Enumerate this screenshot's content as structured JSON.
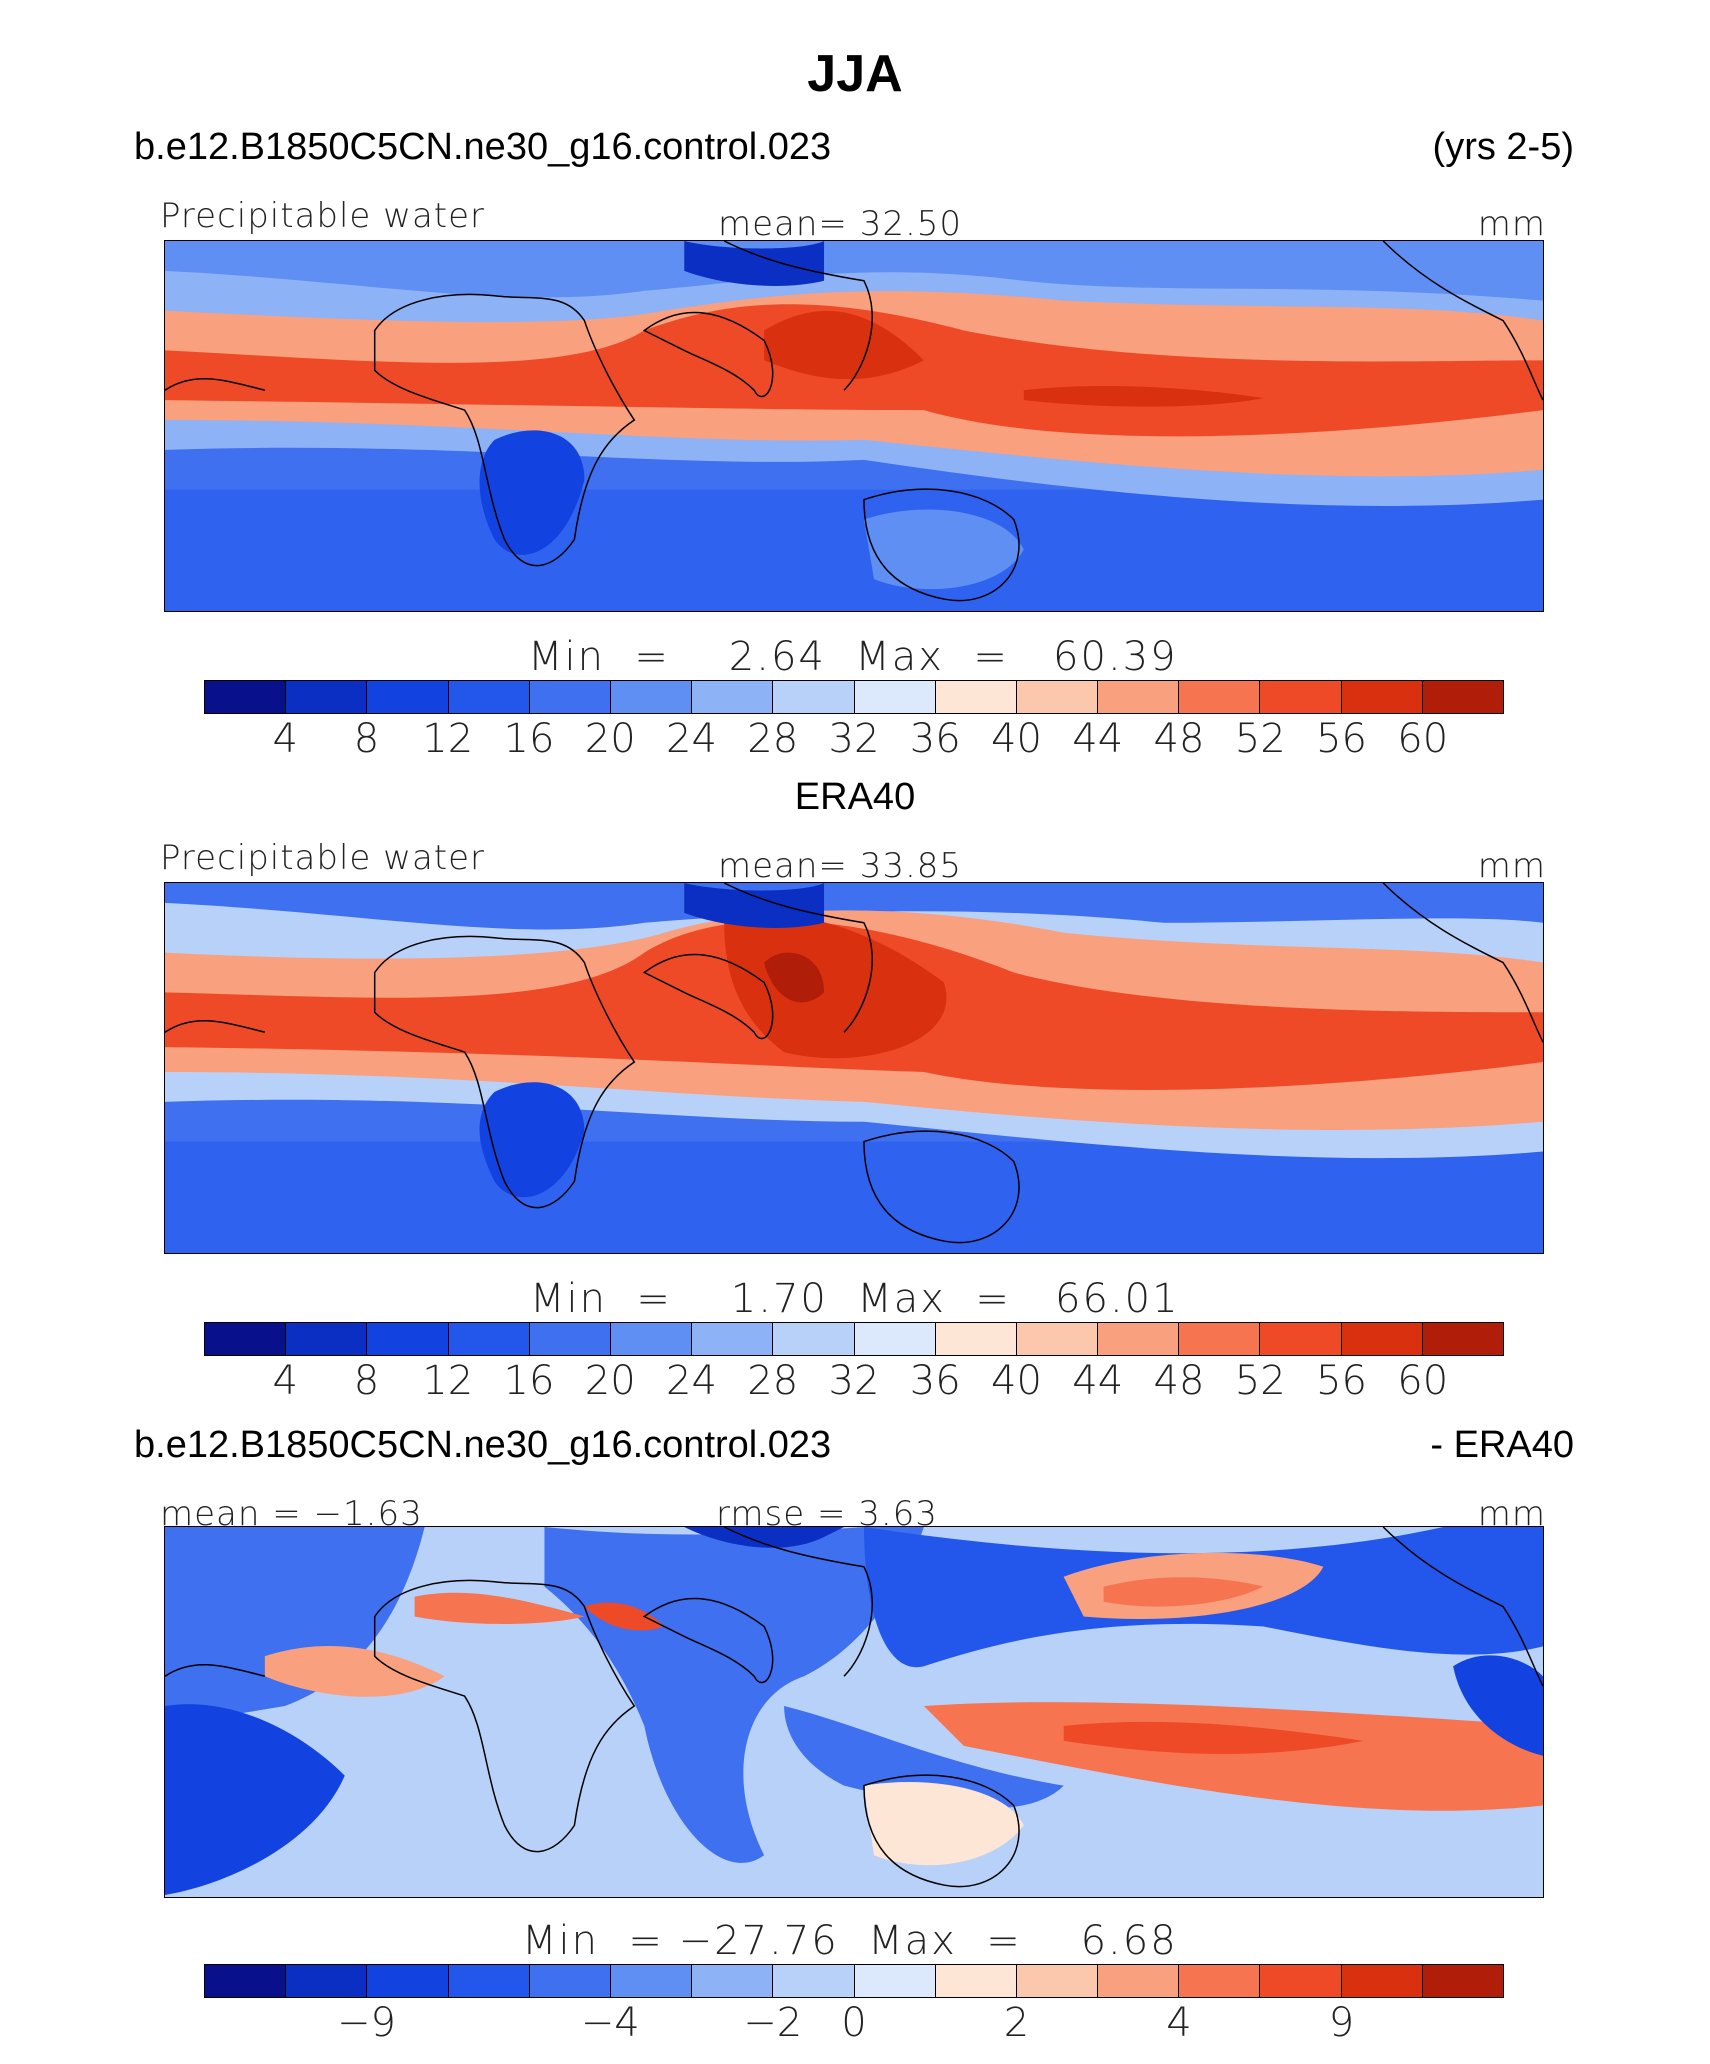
{
  "title": "JJA",
  "season_years": "(yrs 2-5)",
  "palette": [
    "#08108c",
    "#0b2fc2",
    "#1243e0",
    "#2357ec",
    "#3f70f0",
    "#5f8ff2",
    "#8db2f5",
    "#b8d1f8",
    "#dce8fb",
    "#fde6d6",
    "#fbc8ad",
    "#f9a07e",
    "#f77450",
    "#ee4a27",
    "#d9300f",
    "#b01d08",
    "#890c04"
  ],
  "panels": [
    {
      "header_left": "b.e12.B1850C5CN.ne30_g16.control.023",
      "header_right": "(yrs 2-5)",
      "variable": "Precipitable water",
      "mean_label": "mean=   32.50",
      "units": "mm",
      "minmax": "Min  =    2.64  Max  =   60.39",
      "ticks": [
        "4",
        "8",
        "12",
        "16",
        "20",
        "24",
        "28",
        "32",
        "36",
        "40",
        "44",
        "48",
        "52",
        "56",
        "60"
      ]
    },
    {
      "header_center": "ERA40",
      "variable": "Precipitable water",
      "mean_label": "mean=   33.85",
      "units": "mm",
      "minmax": "Min  =    1.70  Max  =   66.01",
      "ticks": [
        "4",
        "8",
        "12",
        "16",
        "20",
        "24",
        "28",
        "32",
        "36",
        "40",
        "44",
        "48",
        "52",
        "56",
        "60"
      ]
    },
    {
      "header_left": "b.e12.B1850C5CN.ne30_g16.control.023",
      "header_right": "- ERA40",
      "mean_label": "mean =  −1.63",
      "rmse_label": "rmse  =      3.63",
      "units": "mm",
      "minmax": "Min  = −27.76  Max  =    6.68",
      "ticks": [
        "−9",
        "−4",
        "−2",
        "0",
        "2",
        "4",
        "9"
      ]
    }
  ]
}
